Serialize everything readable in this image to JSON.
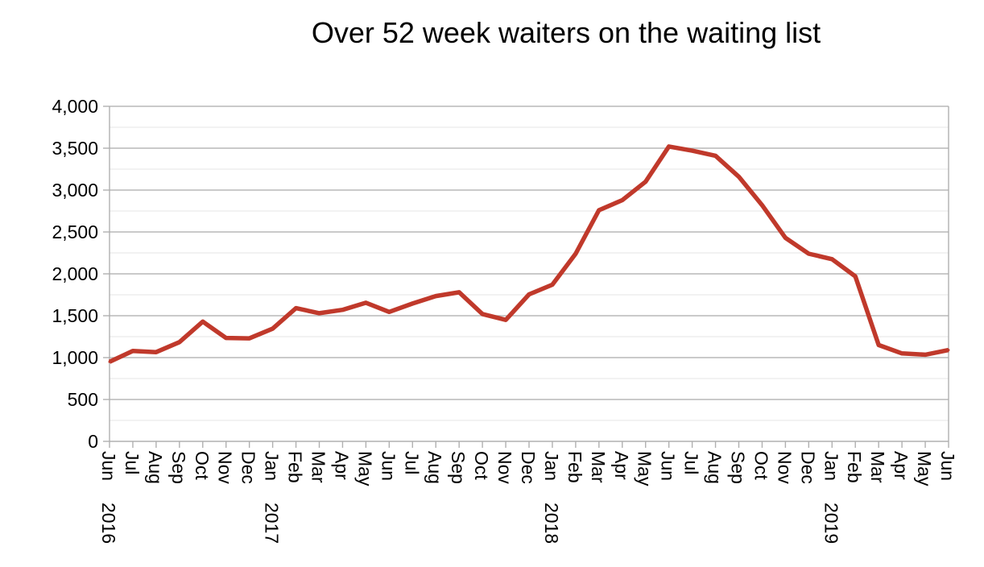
{
  "chart_data": {
    "type": "line",
    "title": "Over 52 week waiters on the waiting list",
    "xlabel": "",
    "ylabel": "",
    "ylim": [
      0,
      4000
    ],
    "yticks": [
      0,
      500,
      1000,
      1500,
      2000,
      2500,
      3000,
      3500,
      4000
    ],
    "ytick_labels": [
      "0",
      "500",
      "1,000",
      "1,500",
      "2,000",
      "2,500",
      "3,000",
      "3,500",
      "4,000"
    ],
    "grid": "horizontal major and minor",
    "legend": "none",
    "line_color": "#c0392b",
    "categories": [
      "Jun",
      "Jul",
      "Aug",
      "Sep",
      "Oct",
      "Nov",
      "Dec",
      "Jan",
      "Feb",
      "Mar",
      "Apr",
      "May",
      "Jun",
      "Jul",
      "Aug",
      "Sep",
      "Oct",
      "Nov",
      "Dec",
      "Jan",
      "Feb",
      "Mar",
      "Apr",
      "May",
      "Jun",
      "Jul",
      "Aug",
      "Sep",
      "Oct",
      "Nov",
      "Dec",
      "Jan",
      "Feb",
      "Mar",
      "Apr",
      "May",
      "Jun"
    ],
    "year_labels": [
      {
        "index": 0,
        "label": "2016"
      },
      {
        "index": 7,
        "label": "2017"
      },
      {
        "index": 19,
        "label": "2018"
      },
      {
        "index": 31,
        "label": "2019"
      }
    ],
    "series": [
      {
        "values": [
          950,
          1080,
          1065,
          1185,
          1430,
          1235,
          1230,
          1345,
          1590,
          1530,
          1570,
          1655,
          1545,
          1645,
          1735,
          1780,
          1520,
          1450,
          1755,
          1870,
          2240,
          2760,
          2880,
          3100,
          3520,
          3470,
          3410,
          3160,
          2820,
          2430,
          2240,
          2175,
          1970,
          1150,
          1050,
          1035,
          1090
        ]
      }
    ]
  }
}
